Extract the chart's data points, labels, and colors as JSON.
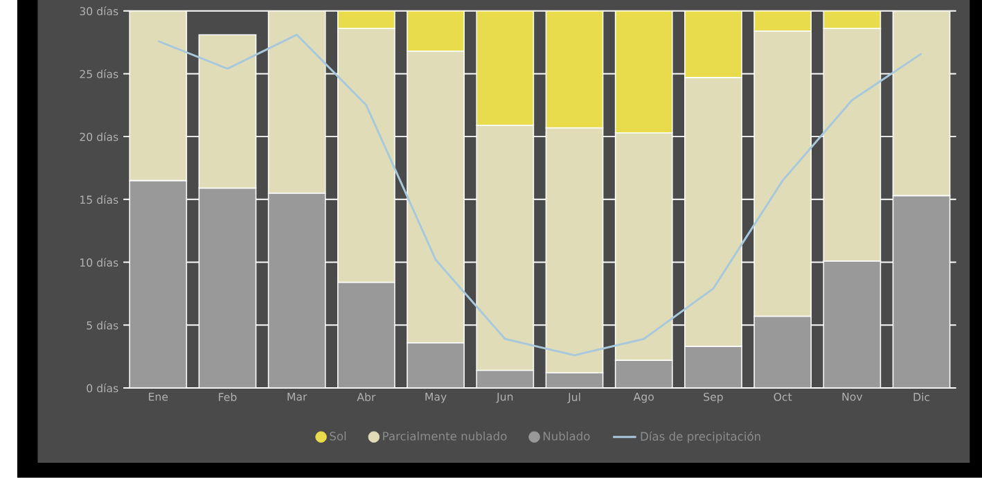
{
  "chart_data": {
    "type": "bar",
    "stacked": true,
    "categories": [
      "Ene",
      "Feb",
      "Mar",
      "Abr",
      "May",
      "Jun",
      "Jul",
      "Ago",
      "Sep",
      "Oct",
      "Nov",
      "Dic"
    ],
    "series": [
      {
        "name": "Nublado",
        "color": "#999999",
        "values": [
          16.5,
          15.9,
          15.5,
          8.4,
          3.6,
          1.4,
          1.2,
          2.2,
          3.3,
          5.7,
          10.1,
          15.3
        ]
      },
      {
        "name": "Parcialmente nublado",
        "color": "#e0dcb8",
        "values": [
          13.5,
          12.2,
          14.5,
          20.2,
          23.2,
          19.5,
          19.5,
          18.1,
          21.4,
          22.7,
          18.5,
          14.7
        ]
      },
      {
        "name": "Sol",
        "color": "#e8dc4c",
        "values": [
          0,
          0,
          0,
          1.4,
          3.2,
          9.1,
          9.3,
          9.7,
          5.3,
          1.6,
          1.4,
          0
        ]
      },
      {
        "name": "Días de precipitación",
        "type": "line",
        "color": "#a8c8dc",
        "values": [
          27.6,
          25.4,
          28.1,
          22.5,
          10.2,
          3.9,
          2.6,
          3.9,
          7.9,
          16.5,
          22.9,
          26.6
        ]
      }
    ],
    "ylim": [
      0,
      30
    ],
    "yticks": [
      {
        "value": 0,
        "label": "0 días"
      },
      {
        "value": 5,
        "label": "5 días"
      },
      {
        "value": 10,
        "label": "10 días"
      },
      {
        "value": 15,
        "label": "15 días"
      },
      {
        "value": 20,
        "label": "20 días"
      },
      {
        "value": 25,
        "label": "25 días"
      },
      {
        "value": 30,
        "label": "30 días"
      }
    ],
    "grid": "y",
    "legend": "bottom",
    "marker": "none",
    "line_style": "solid"
  }
}
